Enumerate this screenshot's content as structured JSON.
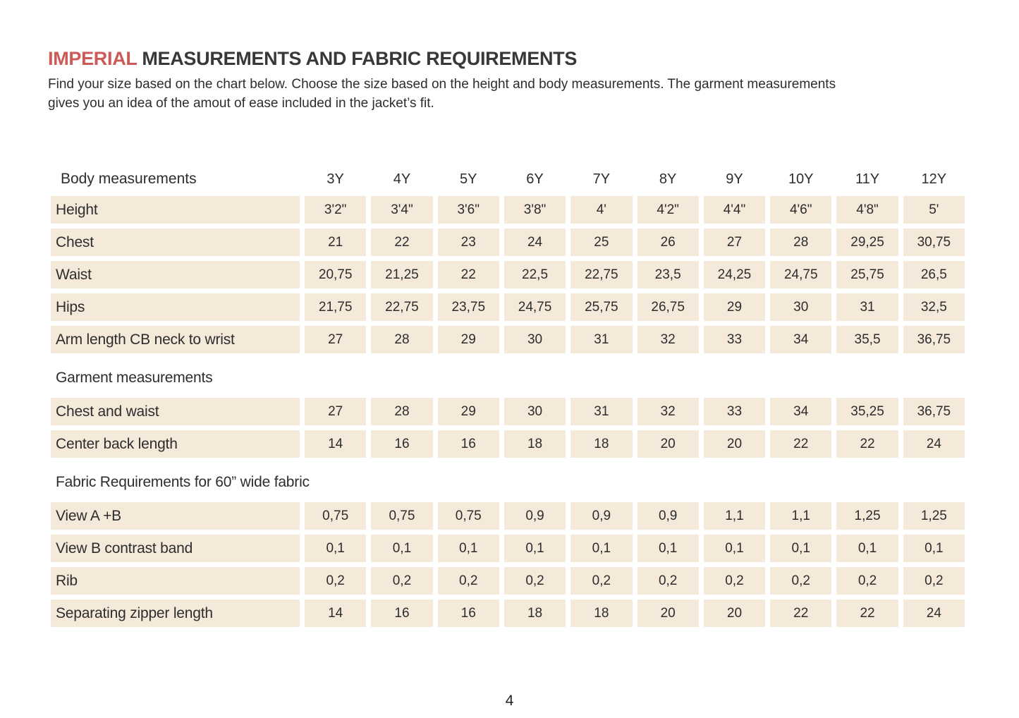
{
  "document": {
    "title": {
      "highlight": "IMPERIAL",
      "rest": " MEASUREMENTS AND FABRIC REQUIREMENTS"
    },
    "intro_lines": [
      "Find your size based on the chart below. Choose the size based on the height and body measurements. The garment measurements",
      "gives you an idea of the amout of ease included in the jacket’s fit."
    ],
    "page_number": "4"
  },
  "colors": {
    "accent": "#cd5a56",
    "cell_background": "#f5e9da",
    "text": "#2d2d2d"
  },
  "table": {
    "header": {
      "label": "Body measurements",
      "sizes": [
        "3Y",
        "4Y",
        "5Y",
        "6Y",
        "7Y",
        "8Y",
        "9Y",
        "10Y",
        "11Y",
        "12Y"
      ]
    },
    "sections": [
      {
        "heading": null,
        "rows": [
          {
            "label": "Height",
            "values": [
              "3'2\"",
              "3'4\"",
              "3'6\"",
              "3'8\"",
              "4'",
              "4'2\"",
              "4'4\"",
              "4'6\"",
              "4'8\"",
              "5'"
            ]
          },
          {
            "label": "Chest",
            "values": [
              "21",
              "22",
              "23",
              "24",
              "25",
              "26",
              "27",
              "28",
              "29,25",
              "30,75"
            ]
          },
          {
            "label": "Waist",
            "values": [
              "20,75",
              "21,25",
              "22",
              "22,5",
              "22,75",
              "23,5",
              "24,25",
              "24,75",
              "25,75",
              "26,5"
            ]
          },
          {
            "label": "Hips",
            "values": [
              "21,75",
              "22,75",
              "23,75",
              "24,75",
              "25,75",
              "26,75",
              "29",
              "30",
              "31",
              "32,5"
            ]
          },
          {
            "label": "Arm length CB neck to wrist",
            "values": [
              "27",
              "28",
              "29",
              "30",
              "31",
              "32",
              "33",
              "34",
              "35,5",
              "36,75"
            ]
          }
        ]
      },
      {
        "heading": "Garment measurements",
        "rows": [
          {
            "label": "Chest and waist",
            "values": [
              "27",
              "28",
              "29",
              "30",
              "31",
              "32",
              "33",
              "34",
              "35,25",
              "36,75"
            ]
          },
          {
            "label": "Center back length",
            "values": [
              "14",
              "16",
              "16",
              "18",
              "18",
              "20",
              "20",
              "22",
              "22",
              "24"
            ]
          }
        ]
      },
      {
        "heading": "Fabric Requirements for  60” wide fabric",
        "rows": [
          {
            "label": "View A +B",
            "values": [
              "0,75",
              "0,75",
              "0,75",
              "0,9",
              "0,9",
              "0,9",
              "1,1",
              "1,1",
              "1,25",
              "1,25"
            ]
          },
          {
            "label": "View B contrast band",
            "values": [
              "0,1",
              "0,1",
              "0,1",
              "0,1",
              "0,1",
              "0,1",
              "0,1",
              "0,1",
              "0,1",
              "0,1"
            ]
          },
          {
            "label": "Rib",
            "values": [
              "0,2",
              "0,2",
              "0,2",
              "0,2",
              "0,2",
              "0,2",
              "0,2",
              "0,2",
              "0,2",
              "0,2"
            ]
          },
          {
            "label": "Separating zipper length",
            "values": [
              "14",
              "16",
              "16",
              "18",
              "18",
              "20",
              "20",
              "22",
              "22",
              "24"
            ]
          }
        ]
      }
    ]
  }
}
